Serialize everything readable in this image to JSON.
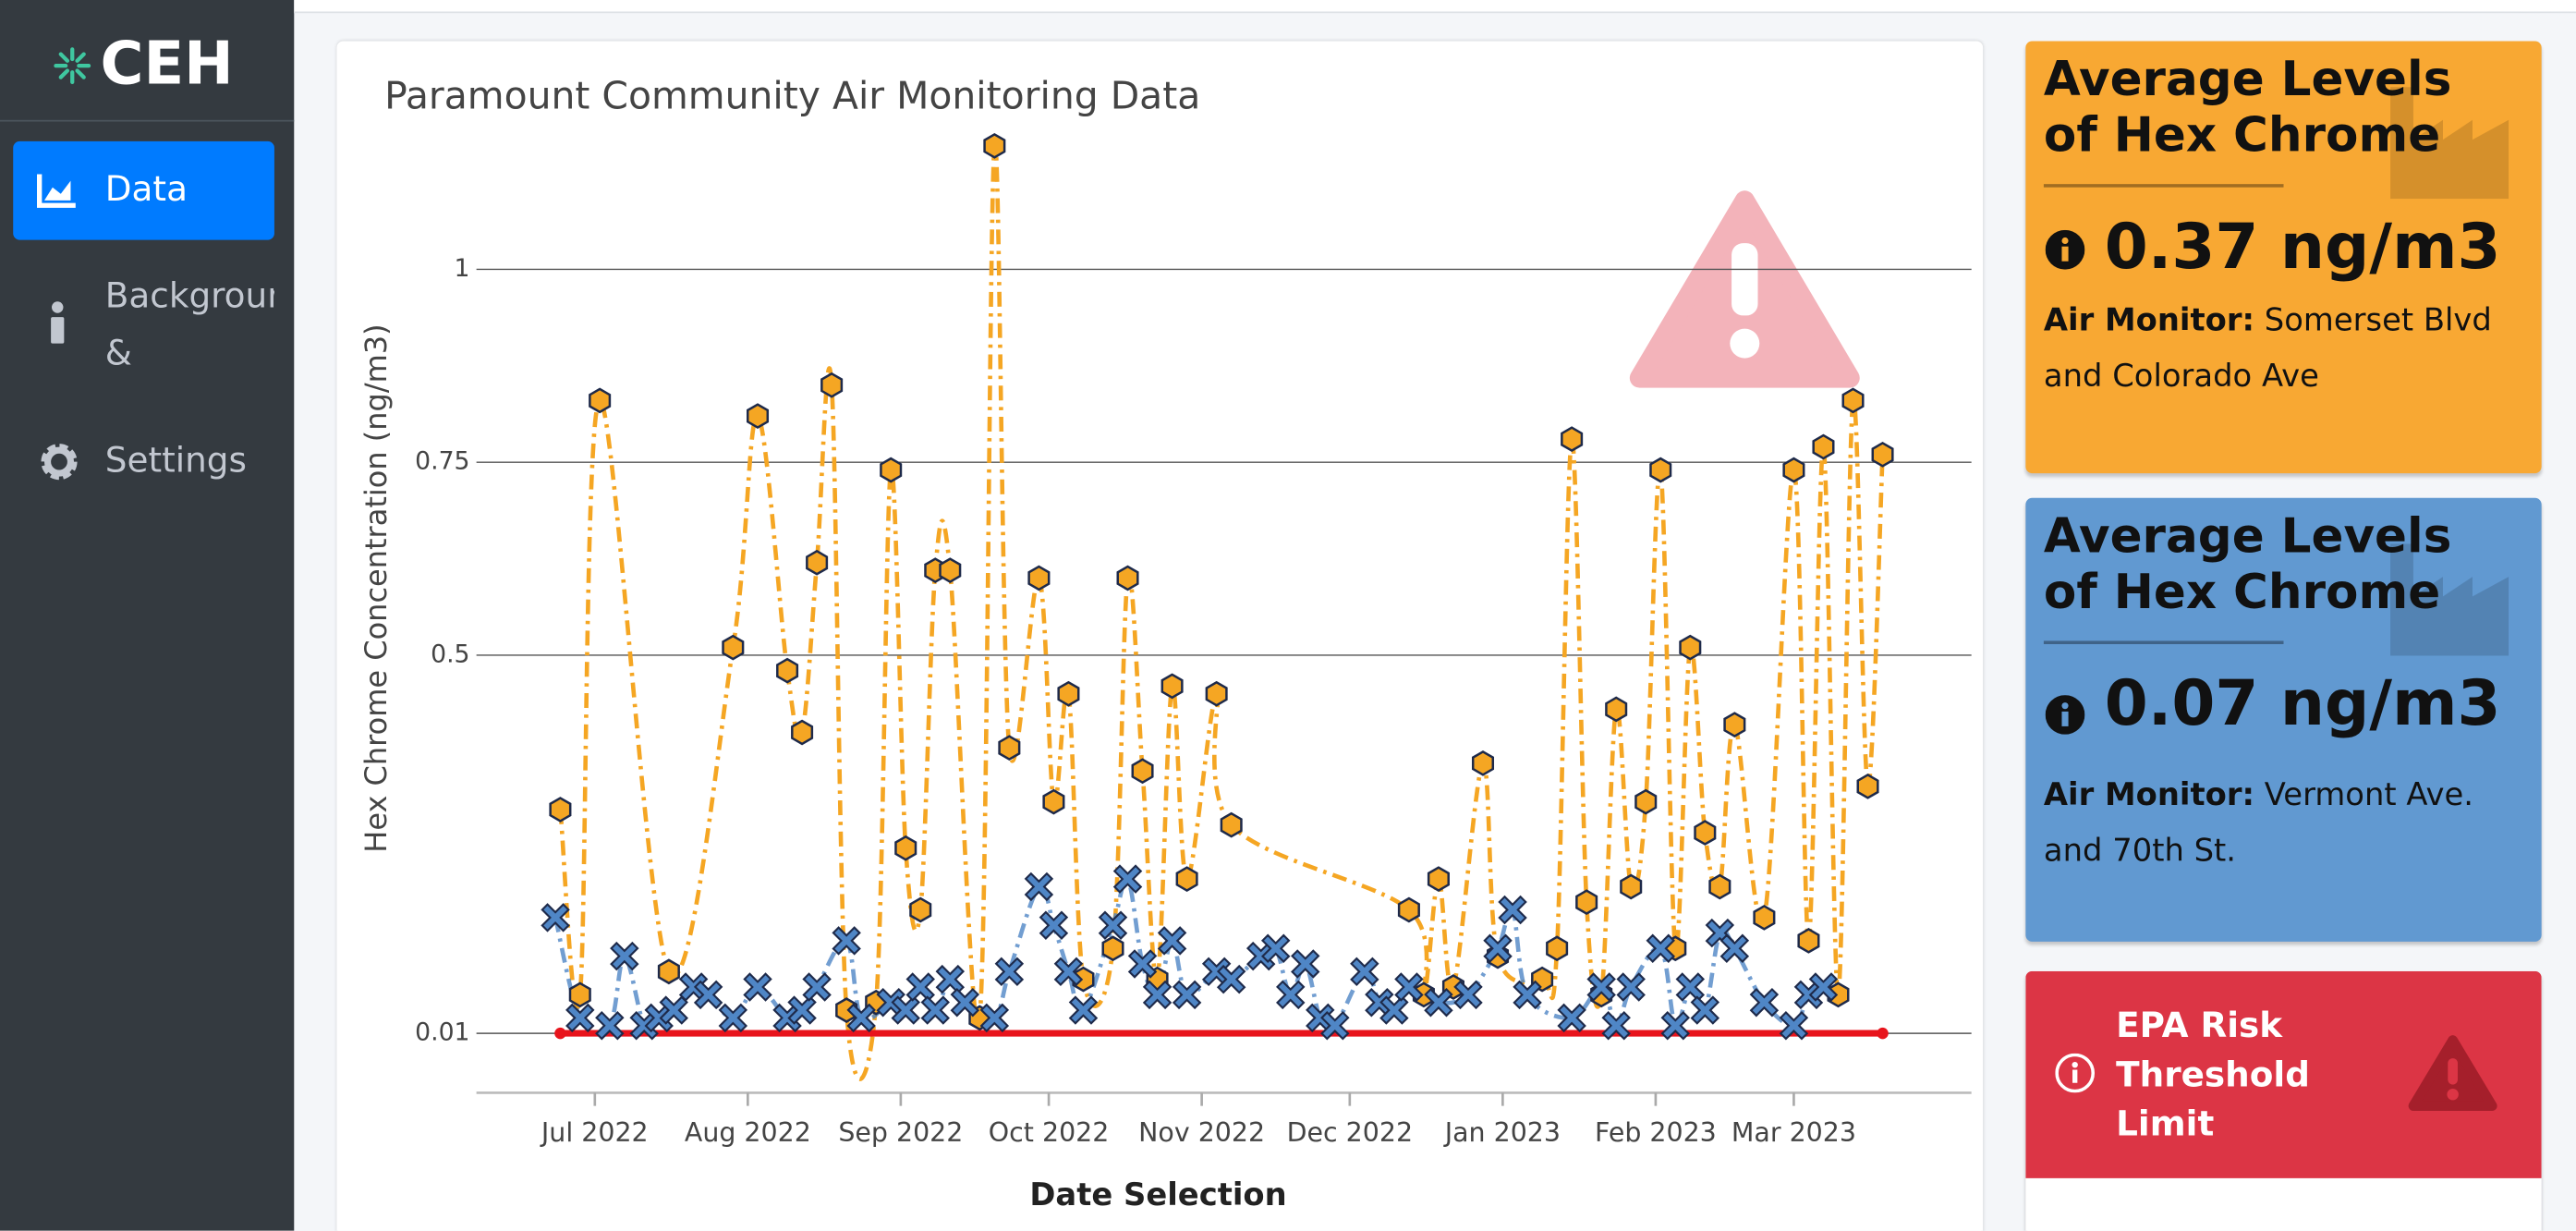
{
  "sidebar": {
    "brand": "CEH",
    "nav": [
      {
        "label": "Data"
      },
      {
        "label": "Background & Resources"
      },
      {
        "label": "Settings"
      }
    ]
  },
  "chart_data": {
    "type": "line",
    "title": "Paramount Community Air Monitoring Data",
    "y_label": "Hex Chrome Concentration (ng/m3)",
    "x_label": "Date Selection",
    "xlim": [
      "2022-06-07",
      "2023-04-06"
    ],
    "xticks": [
      {
        "value": "2022-07-01",
        "label": "Jul 2022"
      },
      {
        "value": "2022-08-01",
        "label": "Aug 2022"
      },
      {
        "value": "2022-09-01",
        "label": "Sep 2022"
      },
      {
        "value": "2022-10-01",
        "label": "Oct 2022"
      },
      {
        "value": "2022-11-01",
        "label": "Nov 2022"
      },
      {
        "value": "2022-12-01",
        "label": "Dec 2022"
      },
      {
        "value": "2023-01-01",
        "label": "Jan 2023"
      },
      {
        "value": "2023-02-01",
        "label": "Feb 2023"
      },
      {
        "value": "2023-03-01",
        "label": "Mar 2023"
      }
    ],
    "ylim": [
      -0.067,
      1.2
    ],
    "yticks": [
      0.01,
      0.5,
      0.75,
      1
    ],
    "grid": true,
    "series": [
      {
        "color": "#f5a623",
        "marker": "hexagon",
        "dash": "dashdot",
        "x": [
          "2022-06-24",
          "2022-06-28",
          "2022-07-02",
          "2022-07-16",
          "2022-07-29",
          "2022-08-03",
          "2022-08-09",
          "2022-08-12",
          "2022-08-15",
          "2022-08-18",
          "2022-08-21",
          "2022-08-27",
          "2022-08-30",
          "2022-09-02",
          "2022-09-05",
          "2022-09-08",
          "2022-09-11",
          "2022-09-17",
          "2022-09-20",
          "2022-09-23",
          "2022-09-29",
          "2022-10-02",
          "2022-10-05",
          "2022-10-08",
          "2022-10-14",
          "2022-10-17",
          "2022-10-20",
          "2022-10-23",
          "2022-10-26",
          "2022-10-29",
          "2022-11-04",
          "2022-11-07",
          "2022-12-13",
          "2022-12-16",
          "2022-12-19",
          "2022-12-22",
          "2022-12-28",
          "2022-12-31",
          "2023-01-09",
          "2023-01-12",
          "2023-01-15",
          "2023-01-18",
          "2023-01-21",
          "2023-01-24",
          "2023-01-27",
          "2023-01-30",
          "2023-02-02",
          "2023-02-05",
          "2023-02-08",
          "2023-02-11",
          "2023-02-14",
          "2023-02-17",
          "2023-02-23",
          "2023-03-01",
          "2023-03-04",
          "2023-03-07",
          "2023-03-10",
          "2023-03-13",
          "2023-03-16",
          "2023-03-19"
        ],
        "values": [
          0.3,
          0.06,
          0.83,
          0.09,
          0.51,
          0.81,
          0.48,
          0.4,
          0.62,
          0.85,
          0.04,
          0.05,
          0.74,
          0.25,
          0.17,
          0.61,
          0.61,
          0.03,
          1.16,
          0.38,
          0.6,
          0.31,
          0.45,
          0.08,
          0.12,
          0.6,
          0.35,
          0.08,
          0.46,
          0.21,
          0.45,
          0.28,
          0.17,
          0.06,
          0.21,
          0.07,
          0.36,
          0.11,
          0.08,
          0.12,
          0.78,
          0.18,
          0.06,
          0.43,
          0.2,
          0.31,
          0.74,
          0.12,
          0.51,
          0.27,
          0.2,
          0.41,
          0.16,
          0.74,
          0.13,
          0.77,
          0.06,
          0.83,
          0.33,
          0.76
        ]
      },
      {
        "color": "#4f86c6",
        "marker": "x",
        "dash": "dashdot",
        "x": [
          "2022-06-23",
          "2022-06-28",
          "2022-07-04",
          "2022-07-07",
          "2022-07-11",
          "2022-07-14",
          "2022-07-17",
          "2022-07-21",
          "2022-07-24",
          "2022-07-29",
          "2022-08-03",
          "2022-08-09",
          "2022-08-12",
          "2022-08-15",
          "2022-08-21",
          "2022-08-24",
          "2022-08-30",
          "2022-09-02",
          "2022-09-05",
          "2022-09-08",
          "2022-09-11",
          "2022-09-14",
          "2022-09-20",
          "2022-09-23",
          "2022-09-29",
          "2022-10-02",
          "2022-10-05",
          "2022-10-08",
          "2022-10-14",
          "2022-10-17",
          "2022-10-20",
          "2022-10-23",
          "2022-10-26",
          "2022-10-29",
          "2022-11-04",
          "2022-11-07",
          "2022-11-13",
          "2022-11-16",
          "2022-11-19",
          "2022-11-22",
          "2022-11-25",
          "2022-11-28",
          "2022-12-04",
          "2022-12-07",
          "2022-12-10",
          "2022-12-13",
          "2022-12-19",
          "2022-12-25",
          "2022-12-31",
          "2023-01-03",
          "2023-01-06",
          "2023-01-15",
          "2023-01-21",
          "2023-01-24",
          "2023-01-27",
          "2023-02-02",
          "2023-02-05",
          "2023-02-08",
          "2023-02-11",
          "2023-02-14",
          "2023-02-17",
          "2023-02-23",
          "2023-03-01",
          "2023-03-04",
          "2023-03-07"
        ],
        "values": [
          0.16,
          0.03,
          0.02,
          0.11,
          0.02,
          0.03,
          0.04,
          0.07,
          0.06,
          0.03,
          0.07,
          0.03,
          0.04,
          0.07,
          0.13,
          0.03,
          0.05,
          0.04,
          0.07,
          0.04,
          0.08,
          0.05,
          0.03,
          0.09,
          0.2,
          0.15,
          0.09,
          0.04,
          0.15,
          0.21,
          0.1,
          0.06,
          0.13,
          0.06,
          0.09,
          0.08,
          0.11,
          0.12,
          0.06,
          0.1,
          0.03,
          0.02,
          0.09,
          0.05,
          0.04,
          0.07,
          0.05,
          0.06,
          0.12,
          0.17,
          0.06,
          0.03,
          0.07,
          0.02,
          0.07,
          0.12,
          0.02,
          0.07,
          0.04,
          0.14,
          0.12,
          0.05,
          0.02,
          0.06,
          0.07
        ]
      },
      {
        "color": "#e8141c",
        "marker": "circle",
        "dash": "solid",
        "x": [
          "2022-06-24",
          "2023-03-19"
        ],
        "values": [
          0.01,
          0.01
        ]
      }
    ]
  },
  "cards": [
    {
      "title": "Average Levels of Hex Chrome",
      "value": "0.37 ng/m3",
      "monitor_label": "Air Monitor:",
      "monitor": "Somerset Blvd and Colorado Ave"
    },
    {
      "title": "Average Levels of Hex Chrome",
      "value": "0.07 ng/m3",
      "monitor_label": "Air Monitor:",
      "monitor": "Vermont Ave. and 70th St."
    }
  ],
  "alert_card": {
    "title": "EPA Risk Threshold Limit"
  }
}
